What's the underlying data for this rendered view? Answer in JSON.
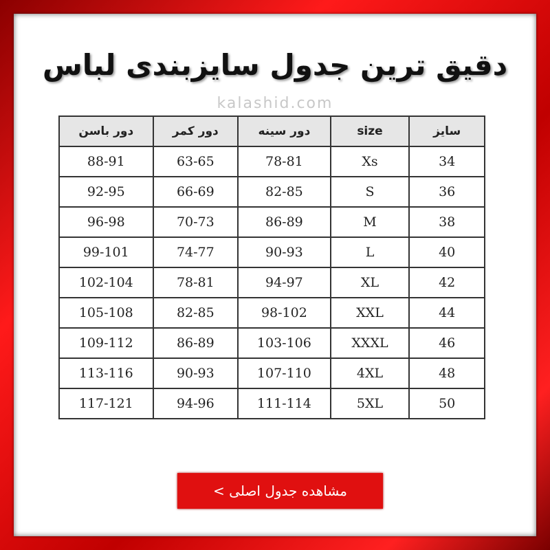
{
  "header": {
    "title": "دقیق ترین جدول سایزبندی لباس",
    "watermark": "kalashid.com"
  },
  "table": {
    "columns": [
      "سایز",
      "size",
      "دور سینه",
      "دور کمر",
      "دور باسن"
    ],
    "rows": [
      [
        34,
        "Xs",
        "78-81",
        "63-65",
        "88-91"
      ],
      [
        36,
        "S",
        "82-85",
        "66-69",
        "92-95"
      ],
      [
        38,
        "M",
        "86-89",
        "70-73",
        "96-98"
      ],
      [
        40,
        "L",
        "90-93",
        "74-77",
        "99-101"
      ],
      [
        42,
        "XL",
        "94-97",
        "78-81",
        "102-104"
      ],
      [
        44,
        "XXL",
        "98-102",
        "82-85",
        "105-108"
      ],
      [
        46,
        "XXXL",
        "103-106",
        "86-89",
        "109-112"
      ],
      [
        48,
        "4XL",
        "107-110",
        "90-93",
        "113-116"
      ],
      [
        50,
        "5XL",
        "111-114",
        "94-96",
        "117-121"
      ]
    ]
  },
  "button": {
    "label": "مشاهده جدول اصلی >"
  }
}
